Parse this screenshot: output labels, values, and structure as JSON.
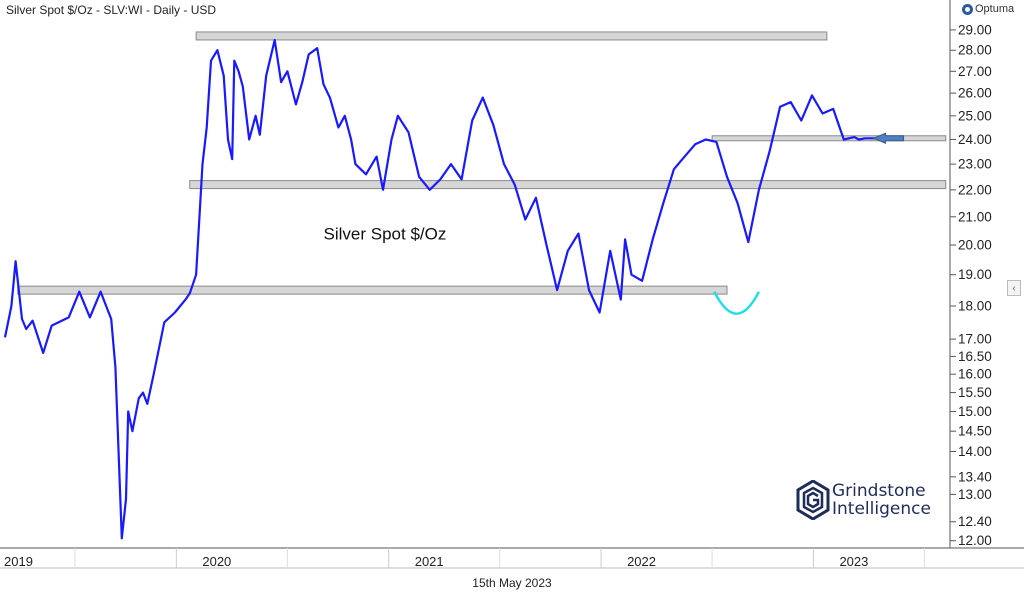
{
  "header": {
    "title": "Silver Spot $/Oz - SLV:WI - Daily - USD"
  },
  "brand": {
    "label": "Optuma",
    "icon": "optuma-logo-icon"
  },
  "footer": {
    "date_label": "15th May 2023"
  },
  "watermark": {
    "line1": "Grindstone",
    "line2": "Intelligence",
    "icon": "hexagon-g-logo-icon"
  },
  "ui": {
    "collapse_icon": "chevron-left-icon",
    "collapse_glyph": "‹"
  },
  "colors": {
    "line": "#1a1aff",
    "band_fill": "#d6d6d6",
    "band_stroke": "#8a8a8a",
    "arc": "#22dde8",
    "arrow": "#4f7fc0",
    "grid": "#e2e2e2",
    "watermark": "#1e2c5a"
  },
  "chart_data": {
    "type": "line",
    "title": "",
    "annotation": "Silver Spot $/Oz",
    "xlabel": "",
    "ylabel": "",
    "scale": "log",
    "ylim": [
      11.85,
      29.4
    ],
    "xlim": [
      0,
      4.45
    ],
    "x_ticks": [
      {
        "label": "2019",
        "x": 0
      },
      {
        "label": "2020",
        "x": 1
      },
      {
        "label": "2021",
        "x": 2
      },
      {
        "label": "2022",
        "x": 3
      },
      {
        "label": "2023",
        "x": 4
      }
    ],
    "y_ticks": [
      "29.00",
      "28.00",
      "27.00",
      "26.00",
      "25.00",
      "24.00",
      "23.00",
      "22.00",
      "21.00",
      "20.00",
      "19.00",
      "18.00",
      "17.00",
      "16.50",
      "16.00",
      "15.50",
      "15.00",
      "14.50",
      "14.00",
      "13.40",
      "13.00",
      "12.40",
      "12.00"
    ],
    "grid": false,
    "legend": "none",
    "series": [
      {
        "x": [
          0.0,
          0.03,
          0.05,
          0.08,
          0.1,
          0.13,
          0.18,
          0.22,
          0.3,
          0.35,
          0.4,
          0.45,
          0.5,
          0.52,
          0.55,
          0.57,
          0.58,
          0.6,
          0.63,
          0.65,
          0.67,
          0.7,
          0.75,
          0.8,
          0.85,
          0.87,
          0.9,
          0.93,
          0.95,
          0.97,
          1.0,
          1.03,
          1.05,
          1.07,
          1.08,
          1.1,
          1.12,
          1.15,
          1.18,
          1.2,
          1.23,
          1.27,
          1.3,
          1.33,
          1.37,
          1.4,
          1.43,
          1.47,
          1.5,
          1.53,
          1.57,
          1.6,
          1.63,
          1.65,
          1.7,
          1.75,
          1.78,
          1.82,
          1.85,
          1.9,
          1.95,
          2.0,
          2.05,
          2.1,
          2.15,
          2.2,
          2.25,
          2.3,
          2.35,
          2.4,
          2.45,
          2.5,
          2.55,
          2.6,
          2.65,
          2.7,
          2.75,
          2.8,
          2.85,
          2.9,
          2.92,
          2.95,
          3.0,
          3.05,
          3.1,
          3.15,
          3.2,
          3.25,
          3.3,
          3.35,
          3.4,
          3.45,
          3.5,
          3.55,
          3.6,
          3.65,
          3.7,
          3.75,
          3.8,
          3.85,
          3.9,
          3.95,
          4.0,
          4.02,
          4.05,
          4.08,
          4.1
        ],
        "y": [
          17.05,
          18.0,
          19.45,
          17.6,
          17.3,
          17.55,
          16.6,
          17.4,
          17.65,
          18.45,
          17.65,
          18.45,
          17.6,
          16.2,
          12.05,
          12.9,
          15.0,
          14.5,
          15.35,
          15.5,
          15.2,
          16.0,
          17.5,
          17.8,
          18.2,
          18.4,
          19.0,
          23.0,
          24.5,
          27.5,
          28.0,
          26.8,
          24.0,
          23.2,
          27.5,
          27.0,
          26.3,
          24.0,
          25.0,
          24.2,
          26.8,
          28.5,
          26.5,
          27.0,
          25.5,
          26.5,
          27.8,
          28.1,
          26.4,
          25.8,
          24.5,
          25.0,
          24.0,
          23.0,
          22.6,
          23.3,
          22.0,
          24.0,
          25.0,
          24.3,
          22.5,
          22.0,
          22.4,
          23.0,
          22.4,
          24.8,
          25.8,
          24.6,
          23.0,
          22.2,
          20.9,
          21.7,
          20.0,
          18.5,
          19.8,
          20.4,
          18.5,
          17.8,
          19.8,
          18.2,
          20.2,
          19.0,
          18.8,
          20.2,
          21.5,
          22.8,
          23.3,
          23.8,
          24.0,
          23.9,
          22.5,
          21.5,
          20.1,
          22.0,
          23.5,
          25.4,
          25.6,
          24.8,
          25.9,
          25.1,
          25.3,
          24.0,
          24.1,
          24.0,
          24.05,
          24.05,
          24.05
        ]
      }
    ],
    "bands": [
      {
        "label": "upper",
        "value": 28.7,
        "x_start": 0.9,
        "x_end": 3.87
      },
      {
        "label": "middle",
        "value": 22.2,
        "x_start": 0.87,
        "x_end": 4.43
      },
      {
        "label": "lower",
        "value": 18.5,
        "x_start": 0.06,
        "x_end": 3.4
      },
      {
        "label": "recent",
        "value": 24.05,
        "x_start": 3.33,
        "x_end": 4.43
      }
    ]
  }
}
